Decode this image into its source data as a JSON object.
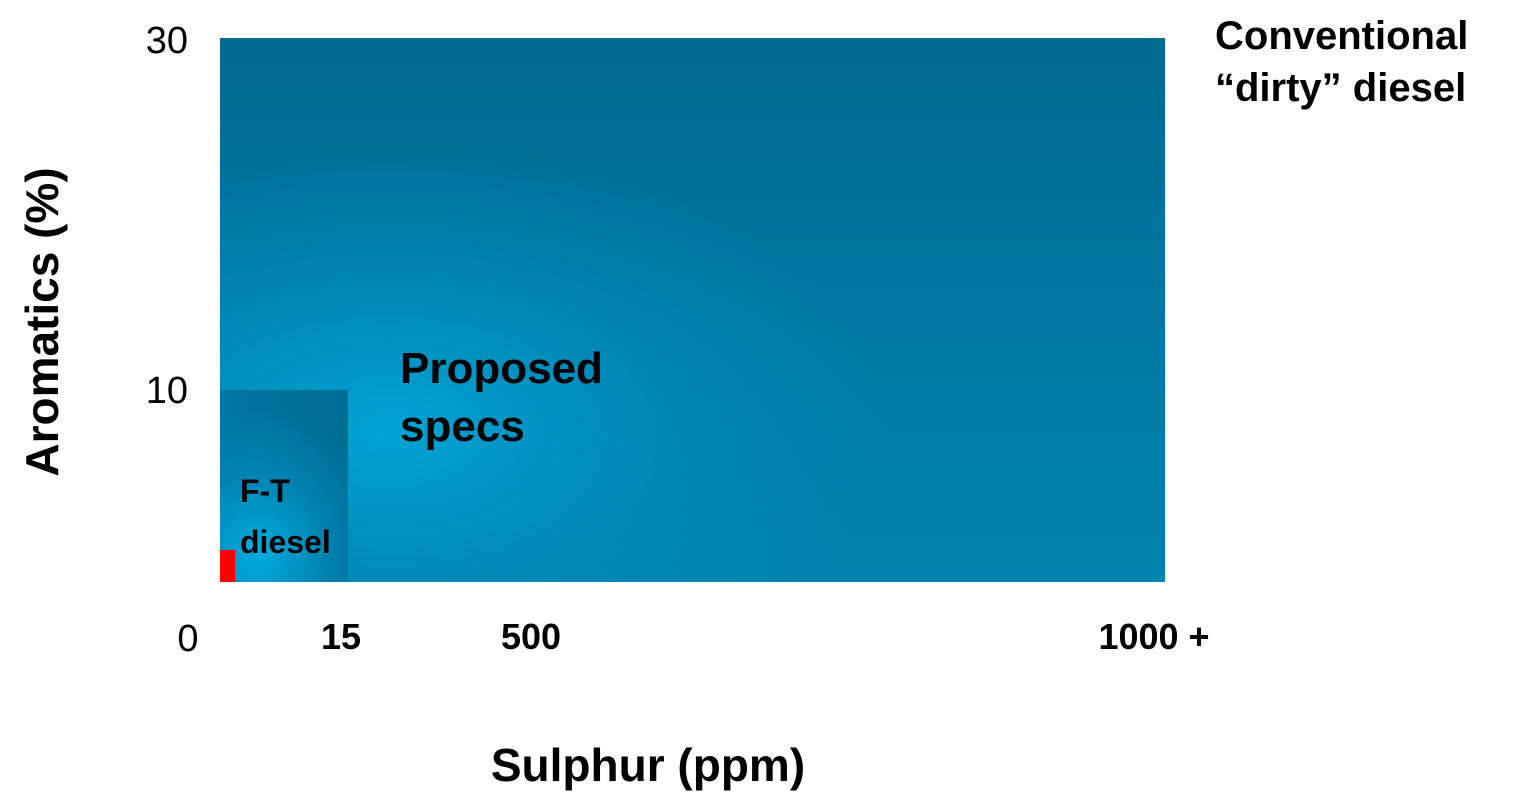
{
  "chart_data": {
    "type": "area",
    "xlabel": "Sulphur (ppm)",
    "ylabel": "Aromatics (%)",
    "x_ticks": [
      {
        "value": 0,
        "label": "0"
      },
      {
        "value": 15,
        "label": "15"
      },
      {
        "value": 500,
        "label": "500"
      },
      {
        "value": 1000,
        "label": "1000 +"
      }
    ],
    "y_ticks": [
      {
        "value": 10,
        "label": "10"
      },
      {
        "value": 30,
        "label": "30"
      }
    ],
    "regions": [
      {
        "label": "Conventional\n“dirty” diesel",
        "sulphur_max_label": "1000 +",
        "aromatics_max": 30,
        "color": "#00719a"
      },
      {
        "label": "Proposed\nspecs",
        "sulphur_max": 15,
        "aromatics_max": 10,
        "color": "#0088b8"
      },
      {
        "label": "F-T\ndiesel",
        "color": "#ff0000"
      }
    ],
    "grid": false,
    "legend": "none"
  }
}
